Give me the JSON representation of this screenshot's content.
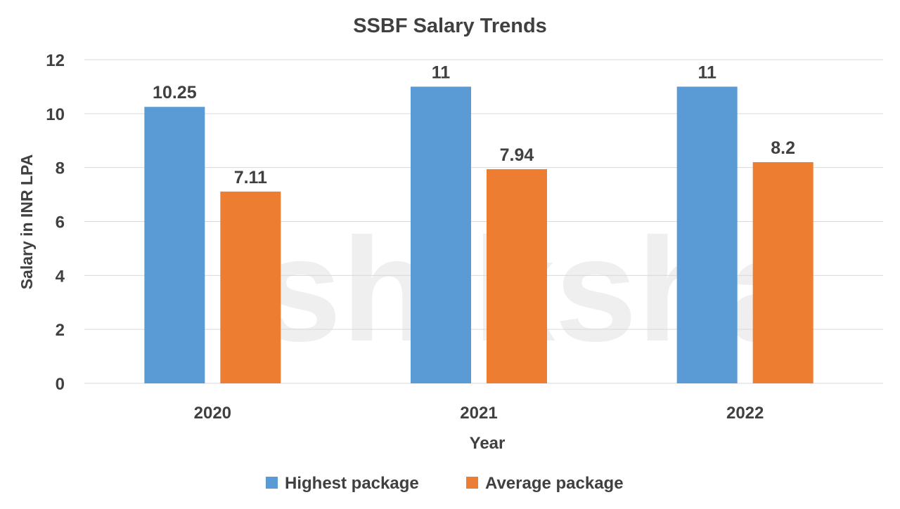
{
  "chart_data": {
    "type": "bar",
    "title": "SSBF Salary Trends",
    "xlabel": "Year",
    "ylabel": "Salary in INR LPA",
    "categories": [
      "2020",
      "2021",
      "2022"
    ],
    "series": [
      {
        "name": "Highest package",
        "values": [
          10.25,
          11,
          11
        ],
        "labels": [
          "10.25",
          "11",
          "11"
        ],
        "color": "#5B9BD5"
      },
      {
        "name": "Average package",
        "values": [
          7.11,
          7.94,
          8.2
        ],
        "labels": [
          "7.11",
          "7.94",
          "8.2"
        ],
        "color": "#ED7D31"
      }
    ],
    "ylim": [
      0,
      12
    ],
    "yticks": [
      "0",
      "2",
      "4",
      "6",
      "8",
      "10",
      "12"
    ],
    "grid": true,
    "legend_position": "bottom",
    "watermark": "shiksha"
  }
}
